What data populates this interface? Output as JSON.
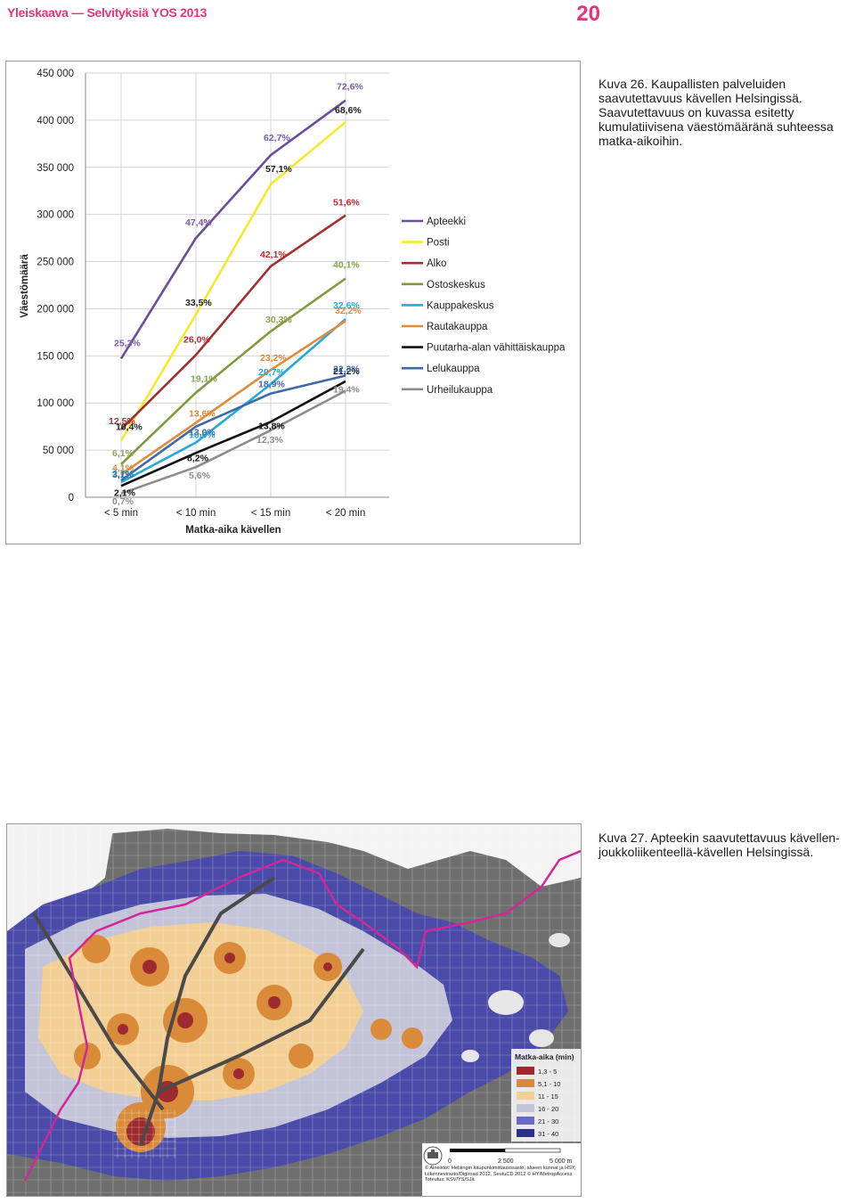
{
  "header": {
    "title": "Yleiskaava — Selvityksiä YOS 2013",
    "page_number": "20",
    "color": "#e5337e"
  },
  "figure26": {
    "caption": "Kuva 26. Kaupallisten palveluiden saavutettavuus kävellen Helsingissä. Saavutettavuus on kuvassa esitetty kumulatiivisena väestömääränä suhteessa matka-aikoihin."
  },
  "figure27": {
    "caption": "Kuva 27. Apteekin saavutettavuus kävellen-joukkoliikenteellä-kävellen Helsingissä.",
    "legend_title": "Matka-aika (min)",
    "legend": [
      {
        "label": "1,3 - 5",
        "color": "#9c2a2e"
      },
      {
        "label": "5,1 - 10",
        "color": "#d98b3a"
      },
      {
        "label": "11 - 15",
        "color": "#f2cf95"
      },
      {
        "label": "16 - 20",
        "color": "#c4c4d8"
      },
      {
        "label": "21 - 30",
        "color": "#6a6ac4"
      },
      {
        "label": "31 - 40",
        "color": "#2e2e8c"
      }
    ],
    "scale_labels": [
      "0",
      "2 500",
      "5 000 m"
    ],
    "credits": "© Aineistot: Helsingin kaupunkimittausosasto, alueen kunnat ja HSY, Liikennevirasto/Digiroad 2012, SeutuCD 2012 © HY/MetropAccess Toteutus: KSV/YS/SJä"
  },
  "chart_data": {
    "type": "line",
    "xlabel": "Matka-aika kävellen",
    "ylabel": "Väestömäärä",
    "categories": [
      "< 5 min",
      "< 10 min",
      "< 15 min",
      "< 20 min"
    ],
    "ylim": [
      0,
      450000
    ],
    "yticks": [
      "0",
      "50 000",
      "100 000",
      "150 000",
      "200 000",
      "250 000",
      "300 000",
      "350 000",
      "400 000",
      "450 000"
    ],
    "grid": true,
    "legend_position": "right",
    "series": [
      {
        "name": "Apteekki",
        "color": "#6b4c9a",
        "values": [
          147000,
          275000,
          363000,
          421000
        ],
        "labels": [
          "25,3%",
          "47,4%",
          "62,7%",
          "72,6%"
        ],
        "label_color": "#7a5ca8"
      },
      {
        "name": "Posti",
        "color": "#f4ea2a",
        "values": [
          60000,
          194000,
          332000,
          398000
        ],
        "labels": [
          "10,4%",
          "33,5%",
          "57,1%",
          "68,6%"
        ],
        "label_color": "#222222"
      },
      {
        "name": "Alko",
        "color": "#a03030",
        "values": [
          72000,
          151000,
          245000,
          299000
        ],
        "labels": [
          "12,5%",
          "26,0%",
          "42,1%",
          "51,6%"
        ],
        "label_color": "#c0282d"
      },
      {
        "name": "Ostoskeskus",
        "color": "#7f9b3e",
        "values": [
          35000,
          111000,
          176000,
          232000
        ],
        "labels": [
          "6,1%",
          "19,1%",
          "30,3%",
          "40,1%"
        ],
        "label_color": "#8aa64a"
      },
      {
        "name": "Kauppakeskus",
        "color": "#25a9d9",
        "values": [
          16000,
          58000,
          120000,
          189000
        ],
        "labels": [
          "2,7%",
          "10,0%",
          "20,7%",
          "32,6%"
        ],
        "label_color": "#25a9d9"
      },
      {
        "name": "Rautakauppa",
        "color": "#e08a3a",
        "values": [
          24000,
          79000,
          135000,
          187000
        ],
        "labels": [
          "4,1%",
          "13,6%",
          "23,2%",
          "32,2%"
        ],
        "label_color": "#e08a3a"
      },
      {
        "name": "Puutarha-alan vähittäiskauppa",
        "color": "#111111",
        "values": [
          12000,
          47000,
          80000,
          123000
        ],
        "labels": [
          "2,1%",
          "8,2%",
          "13,8%",
          "21,2%"
        ],
        "label_color": "#111111"
      },
      {
        "name": "Lelukauppa",
        "color": "#3c6aa8",
        "values": [
          18000,
          75000,
          110000,
          129000
        ],
        "labels": [
          "3,1%",
          "13,0%",
          "18,9%",
          "22,3%"
        ],
        "label_color": "#3c6aa8"
      },
      {
        "name": "Urheilukauppa",
        "color": "#8c8c8c",
        "values": [
          4000,
          32000,
          71000,
          113000
        ],
        "labels": [
          "0,7%",
          "5,6%",
          "12,3%",
          "19,4%"
        ],
        "label_color": "#8c8c8c"
      }
    ]
  }
}
